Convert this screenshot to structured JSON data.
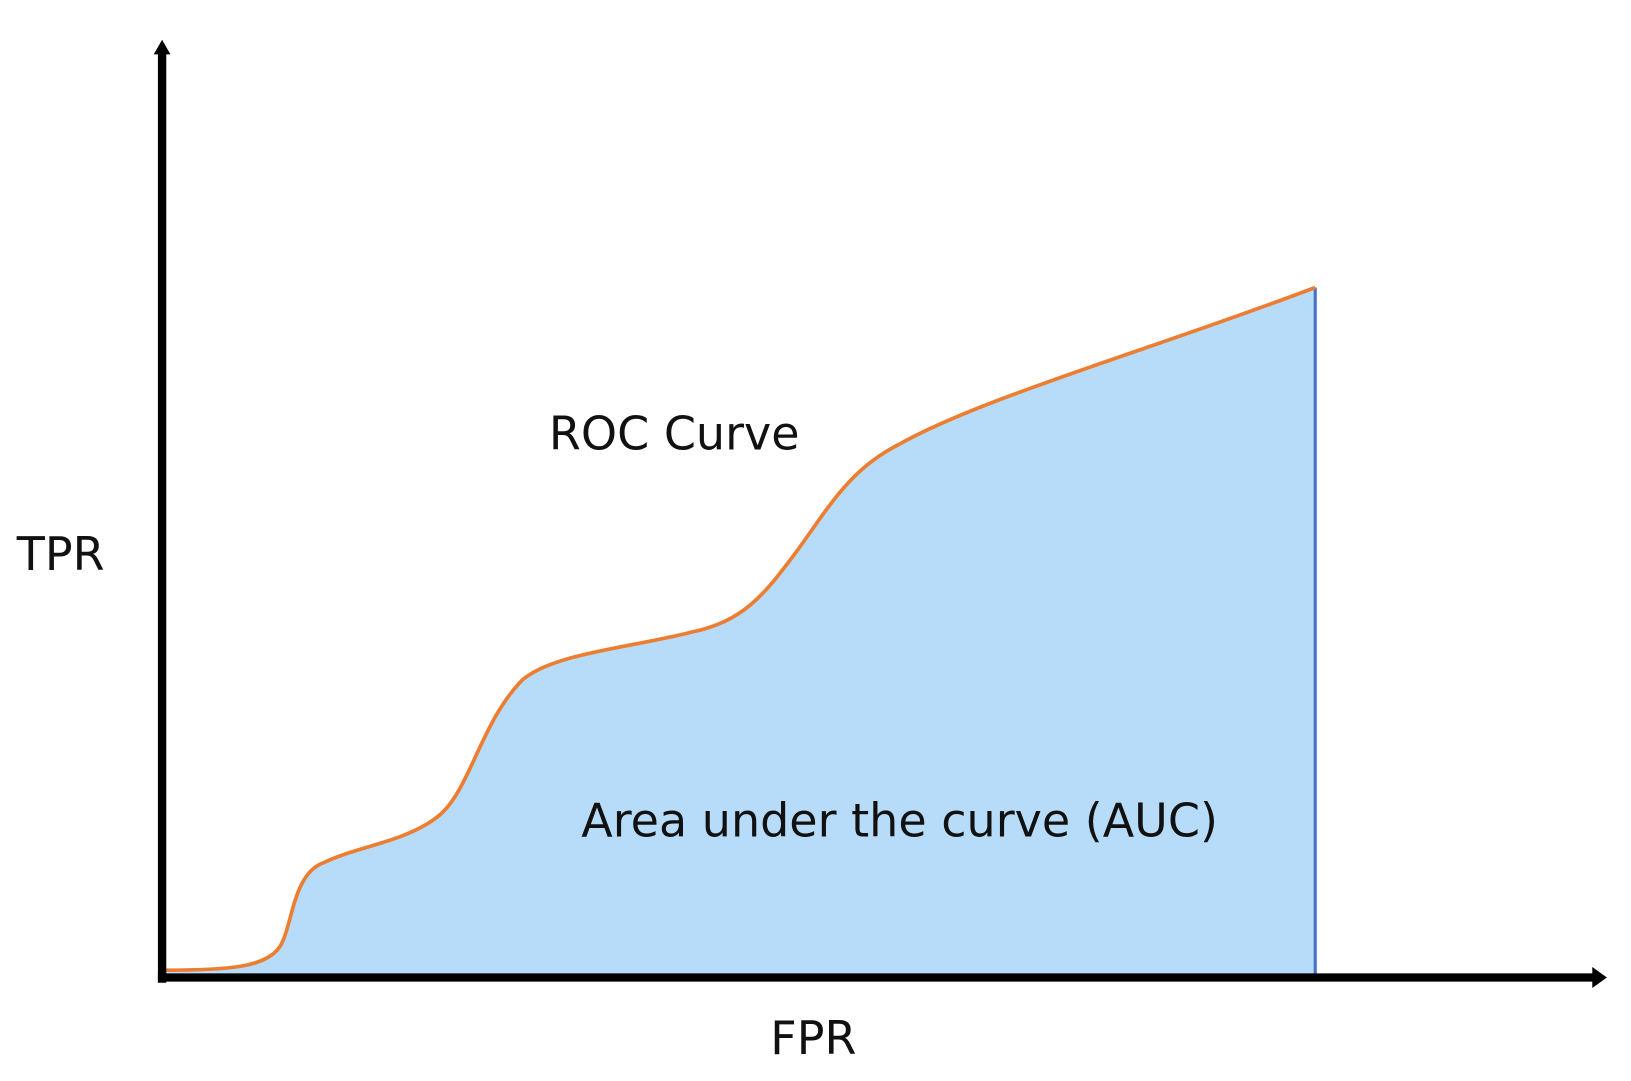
{
  "labels": {
    "y_axis": "TPR",
    "x_axis": "FPR",
    "curve": "ROC Curve",
    "area": "Area under the curve (AUC)"
  }
}
